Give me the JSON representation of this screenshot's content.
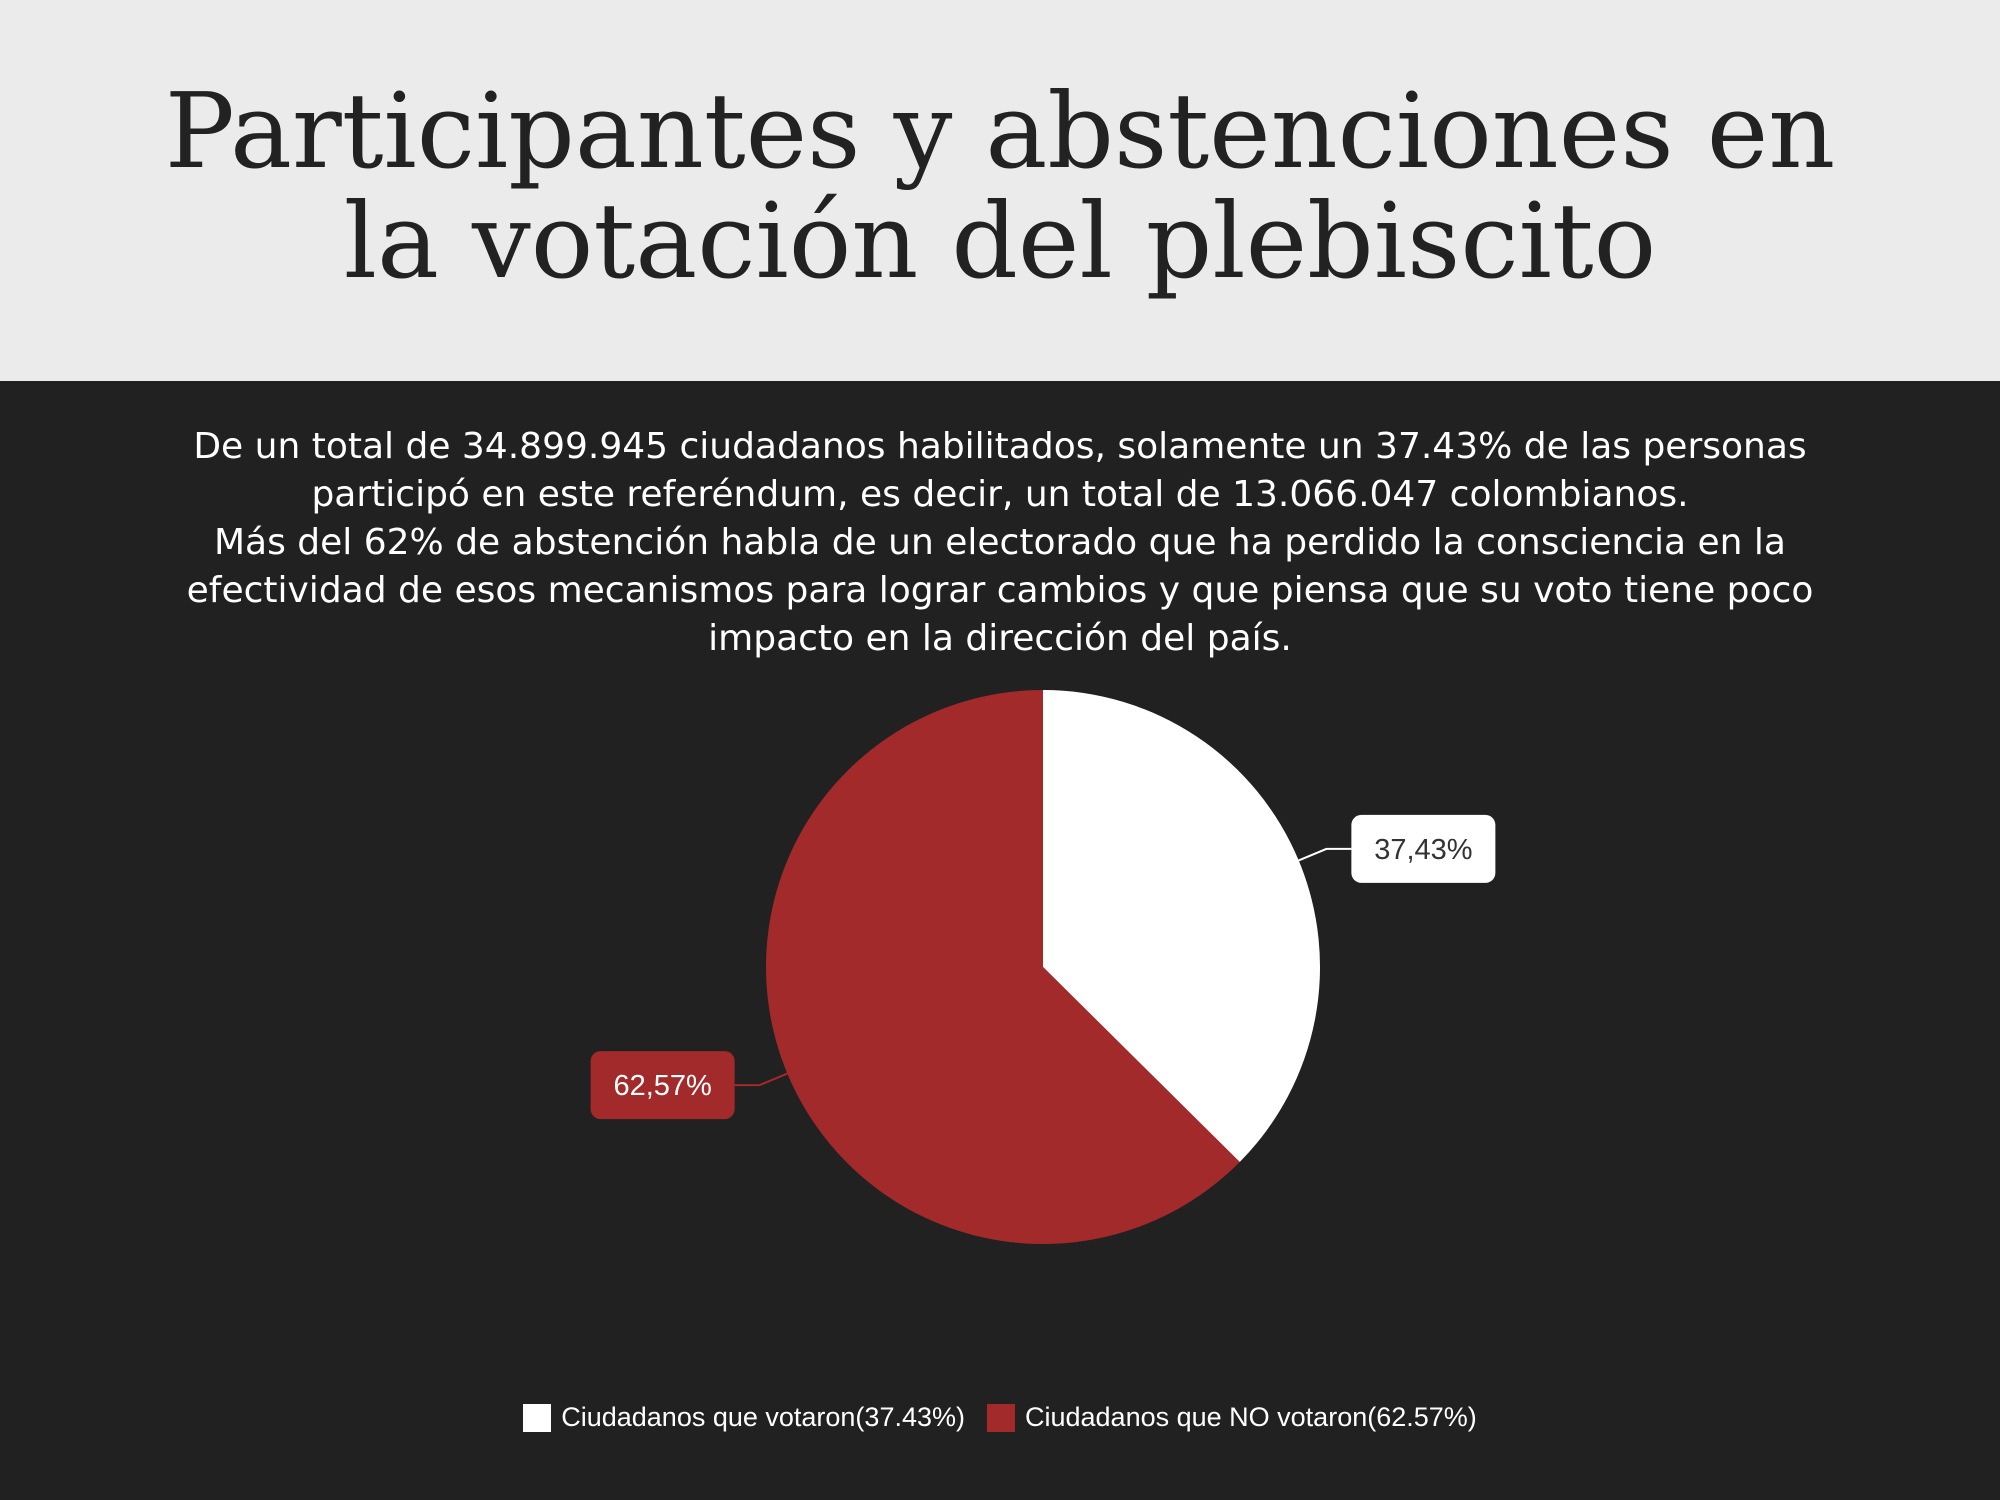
{
  "header": {
    "title": "Participantes y abstenciones en la votación del plebiscito"
  },
  "description": {
    "paragraph_1": "De un total de 34.899.945 ciudadanos habilitados, solamente un 37.43% de las personas participó en este referéndum, es decir, un total de 13.066.047 colombianos.",
    "paragraph_2": "Más del 62% de abstención habla de un electorado que ha perdido la consciencia en la efectividad de esos mecanismos para lograr cambios y que piensa que su voto tiene poco impacto en la dirección del país."
  },
  "colors": {
    "background": "#212121",
    "header_background": "#ebebeb",
    "voted": "#ffffff",
    "not_voted": "#a32a2a"
  },
  "chart_data": {
    "type": "pie",
    "title": "",
    "slices": [
      {
        "name": "Ciudadanos que votaron(37.43%)",
        "value": 37.43,
        "label": "37,43%",
        "color": "#ffffff"
      },
      {
        "name": "Ciudadanos que NO votaron(62.57%)",
        "value": 62.57,
        "label": "62,57%",
        "color": "#a32a2a"
      }
    ],
    "start_angle": "12 o'clock, clockwise",
    "legend_position": "bottom"
  }
}
